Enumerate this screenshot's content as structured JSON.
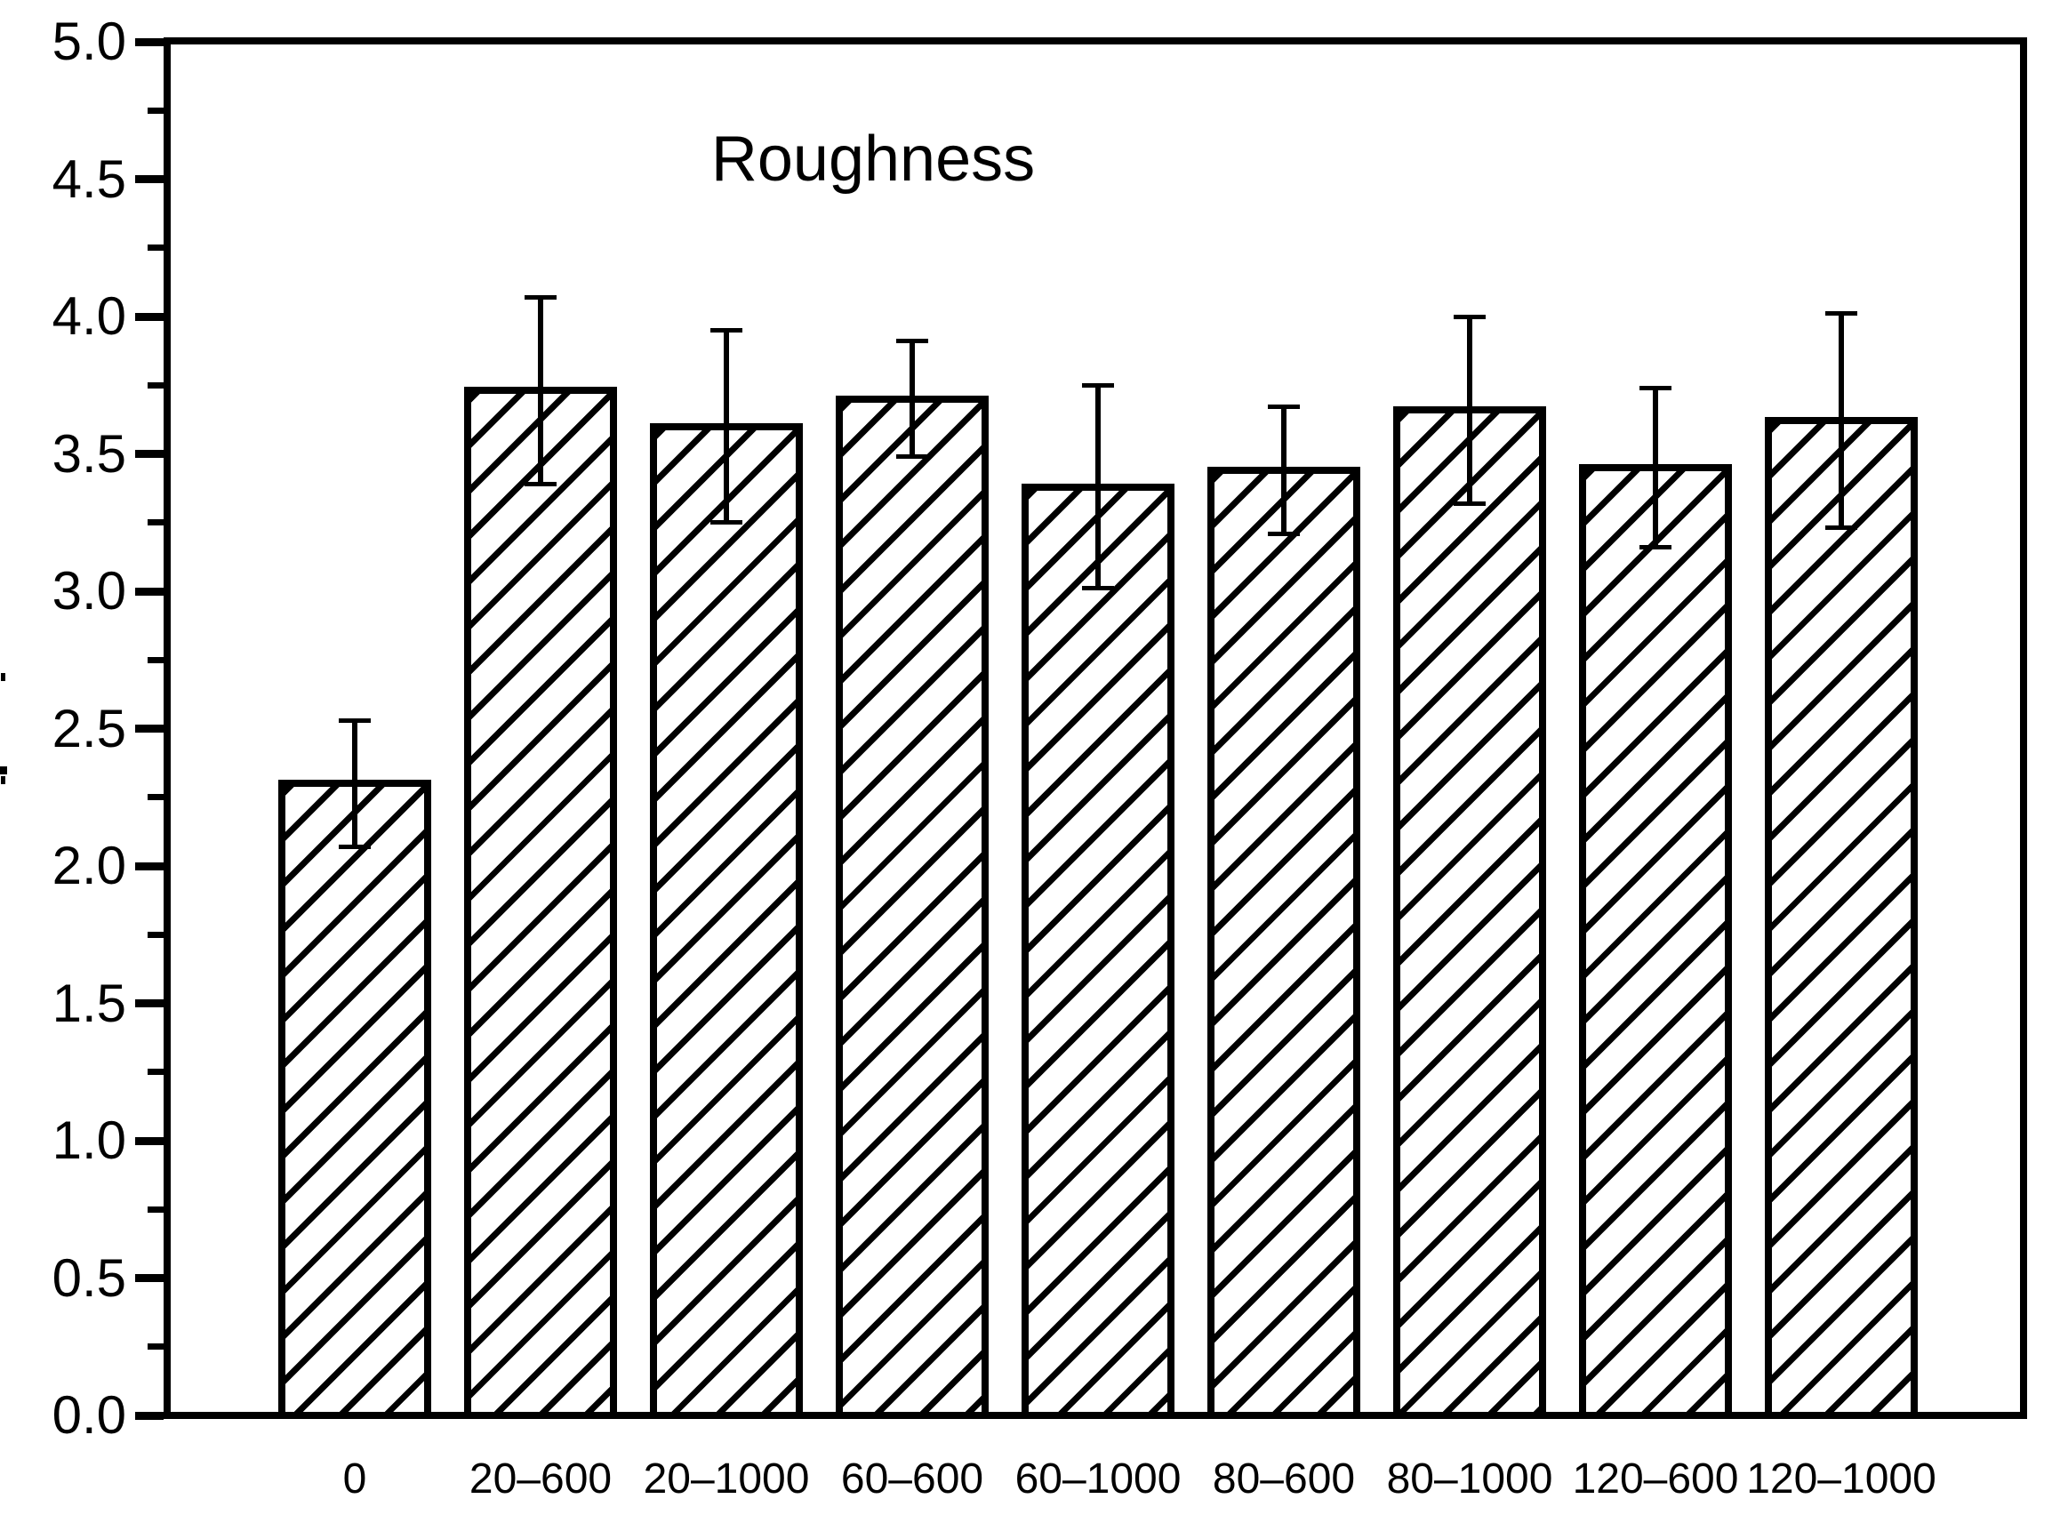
{
  "chart_data": {
    "type": "bar",
    "title": "Roughness",
    "categories": [
      "0",
      "20–600",
      "20–1000",
      "60–600",
      "60–1000",
      "80–600",
      "80–1000",
      "120–600",
      "120–1000"
    ],
    "values": [
      2.3,
      3.73,
      3.6,
      3.7,
      3.38,
      3.44,
      3.66,
      3.45,
      3.62
    ],
    "errors": [
      0.23,
      0.34,
      0.35,
      0.21,
      0.37,
      0.23,
      0.34,
      0.29,
      0.39
    ],
    "xlabel": "",
    "ylabel": "",
    "ylim": [
      0,
      5
    ],
    "ytick_step": 0.5,
    "yminor_step": 0.25,
    "ytick_labels": [
      "0.0",
      "0.5",
      "1.0",
      "1.5",
      "2.0",
      "2.5",
      "3.0",
      "3.5",
      "4.0",
      "4.5",
      "5.0"
    ],
    "grid": false,
    "legend": null,
    "bar_fill": "#ffffff",
    "line_color": "#000000",
    "hatch": "forward-diagonal"
  }
}
